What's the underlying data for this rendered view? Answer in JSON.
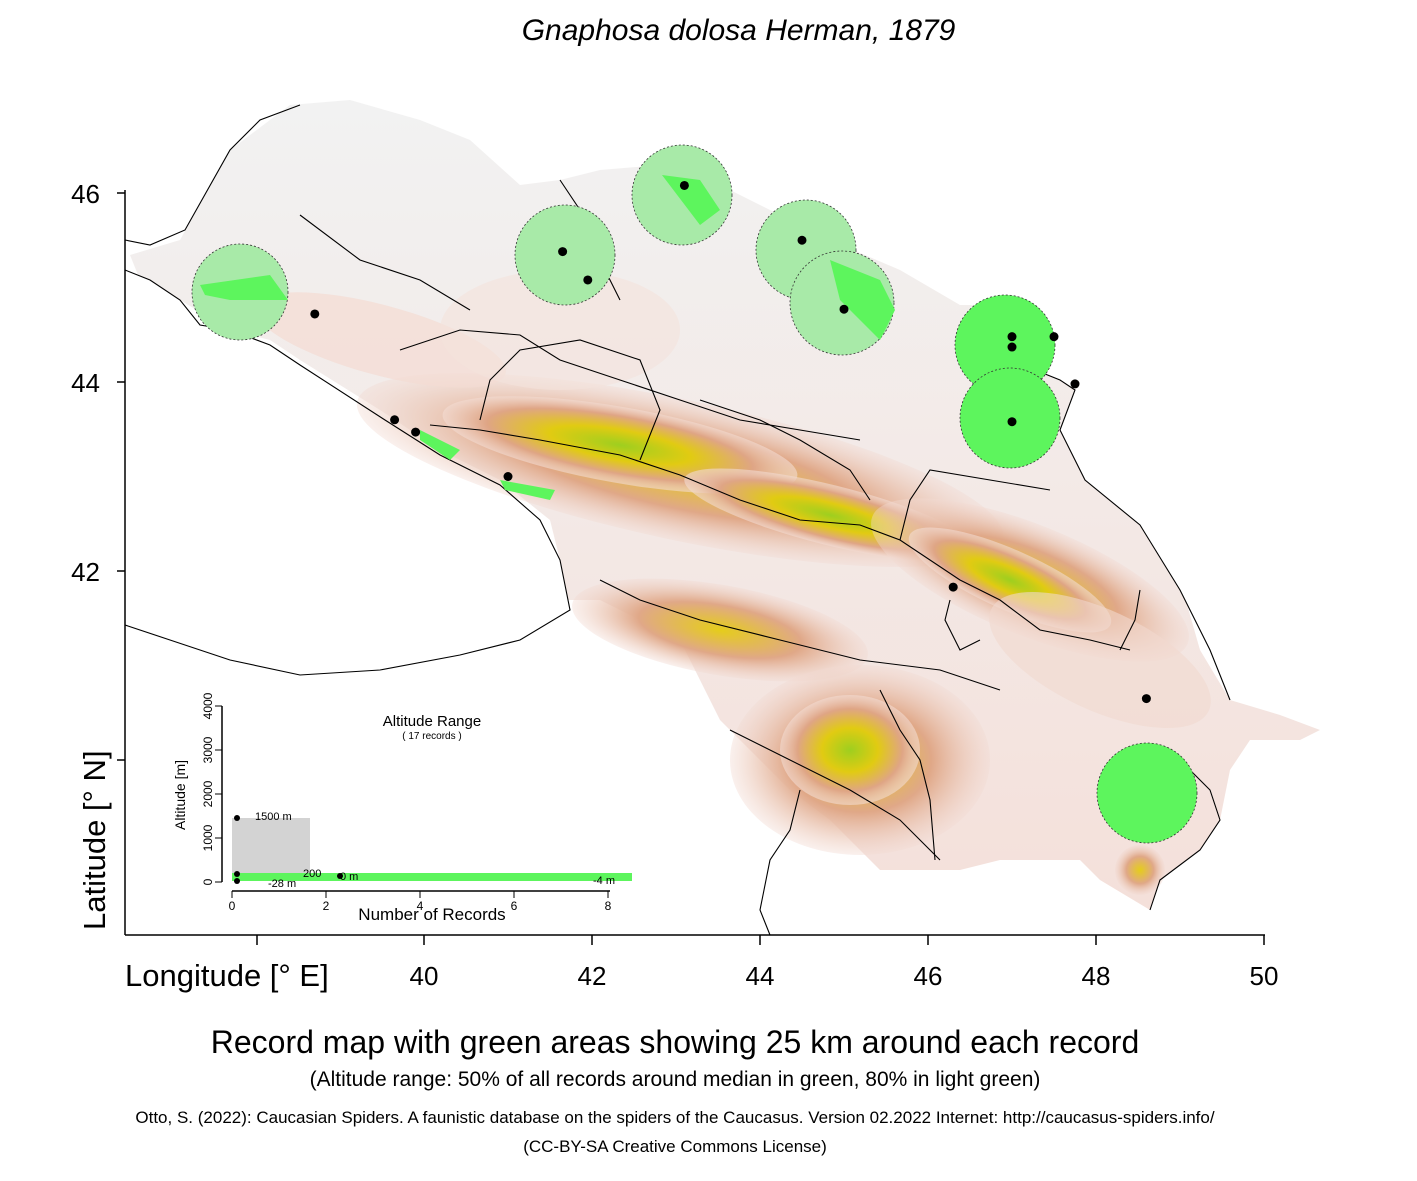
{
  "title": "Gnaphosa dolosa Herman, 1879",
  "axes": {
    "y_label": "Latitude [° N]",
    "x_label": "Longitude [° E]",
    "y_ticks": [
      "46",
      "44",
      "42"
    ],
    "x_ticks": [
      "40",
      "42",
      "44",
      "46",
      "48",
      "50"
    ]
  },
  "records": [
    {
      "lon": 38.7,
      "lat": 44.72
    },
    {
      "lon": 39.65,
      "lat": 43.6
    },
    {
      "lon": 39.9,
      "lat": 43.47
    },
    {
      "lon": 41.0,
      "lat": 43.0
    },
    {
      "lon": 41.65,
      "lat": 45.38
    },
    {
      "lon": 41.95,
      "lat": 45.08
    },
    {
      "lon": 43.1,
      "lat": 46.08
    },
    {
      "lon": 44.5,
      "lat": 45.5
    },
    {
      "lon": 45.0,
      "lat": 44.77
    },
    {
      "lon": 47.0,
      "lat": 44.48
    },
    {
      "lon": 47.0,
      "lat": 44.37
    },
    {
      "lon": 47.5,
      "lat": 44.48
    },
    {
      "lon": 47.75,
      "lat": 43.98
    },
    {
      "lon": 47.0,
      "lat": 43.58
    },
    {
      "lon": 46.3,
      "lat": 41.83
    },
    {
      "lon": 48.6,
      "lat": 40.65
    }
  ],
  "inset": {
    "title": "Altitude Range",
    "subtitle": "( 17 records )",
    "y_label": "Altitude [m]",
    "x_label": "Number of Records",
    "y_ticks": [
      "0",
      "1000",
      "2000",
      "3000",
      "4000"
    ],
    "x_ticks": [
      "0",
      "2",
      "4",
      "6",
      "8"
    ],
    "labels": {
      "max": "1500  m",
      "upper": "200",
      "mid": "0  m",
      "min": "-28  m",
      "right": "-4  m"
    }
  },
  "caption": {
    "main": "Record map with green areas showing 25 km around each record",
    "sub": "(Altitude range: 50% of all records around median in green, 80% in light green)"
  },
  "citation": "Otto, S. (2022): Caucasian Spiders. A faunistic database on the spiders of the Caucasus. Version 02.2022 Internet: http://caucasus-spiders.info/",
  "license": "(CC-BY-SA Creative Commons License)",
  "colors": {
    "record_area": "#5df55d",
    "record_area_light": "#a8eaa8",
    "mountain_high": "#8fcc1a",
    "mountain_mid": "#e0cc10",
    "mountain_low": "#e0a080",
    "lowland": "#f2d5cc",
    "plain": "#ececec"
  }
}
